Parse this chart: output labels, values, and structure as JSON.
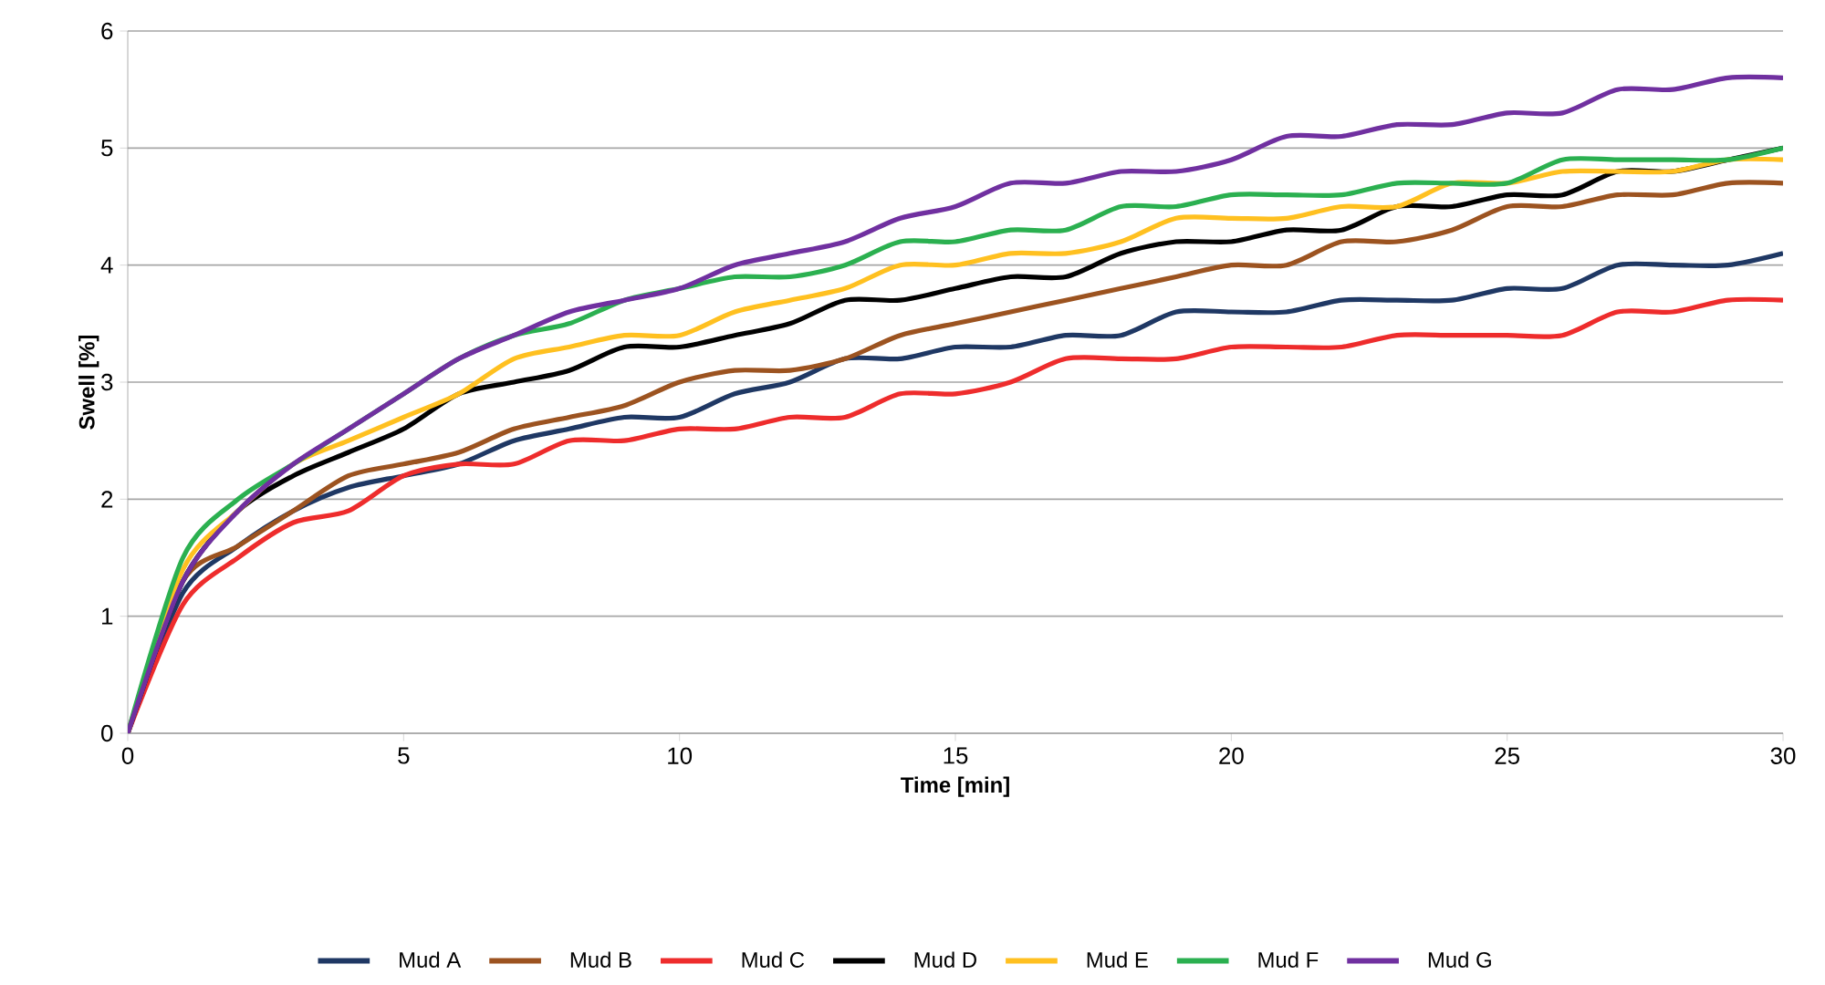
{
  "chart_data": {
    "type": "line",
    "xlabel": "Time [min]",
    "ylabel": "Swell [%]",
    "x": [
      0,
      1,
      2,
      3,
      4,
      5,
      6,
      7,
      8,
      9,
      10,
      11,
      12,
      13,
      14,
      15,
      16,
      17,
      18,
      19,
      20,
      21,
      22,
      23,
      24,
      25,
      26,
      27,
      28,
      29,
      30
    ],
    "series": [
      {
        "name": "Mud A",
        "color": "#1f3864",
        "values": [
          0,
          1.2,
          1.6,
          1.9,
          2.1,
          2.2,
          2.3,
          2.5,
          2.6,
          2.7,
          2.7,
          2.9,
          3.0,
          3.2,
          3.2,
          3.3,
          3.3,
          3.4,
          3.4,
          3.6,
          3.6,
          3.6,
          3.7,
          3.7,
          3.7,
          3.8,
          3.8,
          4.0,
          4.0,
          4.0,
          4.1
        ]
      },
      {
        "name": "Mud B",
        "color": "#9c5320",
        "values": [
          0,
          1.3,
          1.6,
          1.9,
          2.2,
          2.3,
          2.4,
          2.6,
          2.7,
          2.8,
          3.0,
          3.1,
          3.1,
          3.2,
          3.4,
          3.5,
          3.6,
          3.7,
          3.8,
          3.9,
          4.0,
          4.0,
          4.2,
          4.2,
          4.3,
          4.5,
          4.5,
          4.6,
          4.6,
          4.7,
          4.7
        ]
      },
      {
        "name": "Mud C",
        "color": "#ee2c2c",
        "values": [
          0,
          1.1,
          1.5,
          1.8,
          1.9,
          2.2,
          2.3,
          2.3,
          2.5,
          2.5,
          2.6,
          2.6,
          2.7,
          2.7,
          2.9,
          2.9,
          3.0,
          3.2,
          3.2,
          3.2,
          3.3,
          3.3,
          3.3,
          3.4,
          3.4,
          3.4,
          3.4,
          3.6,
          3.6,
          3.7,
          3.7
        ]
      },
      {
        "name": "Mud D",
        "color": "#000000",
        "values": [
          0,
          1.3,
          1.9,
          2.2,
          2.4,
          2.6,
          2.9,
          3.0,
          3.1,
          3.3,
          3.3,
          3.4,
          3.5,
          3.7,
          3.7,
          3.8,
          3.9,
          3.9,
          4.1,
          4.2,
          4.2,
          4.3,
          4.3,
          4.5,
          4.5,
          4.6,
          4.6,
          4.8,
          4.8,
          4.9,
          5.0
        ]
      },
      {
        "name": "Mud E",
        "color": "#ffc020",
        "values": [
          0,
          1.4,
          1.9,
          2.3,
          2.5,
          2.7,
          2.9,
          3.2,
          3.3,
          3.4,
          3.4,
          3.6,
          3.7,
          3.8,
          4.0,
          4.0,
          4.1,
          4.1,
          4.2,
          4.4,
          4.4,
          4.4,
          4.5,
          4.5,
          4.7,
          4.7,
          4.8,
          4.8,
          4.8,
          4.9,
          4.9
        ]
      },
      {
        "name": "Mud F",
        "color": "#2bb050",
        "values": [
          0,
          1.5,
          2.0,
          2.3,
          2.6,
          2.9,
          3.2,
          3.4,
          3.5,
          3.7,
          3.8,
          3.9,
          3.9,
          4.0,
          4.2,
          4.2,
          4.3,
          4.3,
          4.5,
          4.5,
          4.6,
          4.6,
          4.6,
          4.7,
          4.7,
          4.7,
          4.9,
          4.9,
          4.9,
          4.9,
          5.0
        ]
      },
      {
        "name": "Mud G",
        "color": "#7030a0",
        "values": [
          0,
          1.3,
          1.9,
          2.3,
          2.6,
          2.9,
          3.2,
          3.4,
          3.6,
          3.7,
          3.8,
          4.0,
          4.1,
          4.2,
          4.4,
          4.5,
          4.7,
          4.7,
          4.8,
          4.8,
          4.9,
          5.1,
          5.1,
          5.2,
          5.2,
          5.3,
          5.3,
          5.5,
          5.5,
          5.6,
          5.6
        ]
      }
    ],
    "xlim": [
      0,
      30
    ],
    "ylim": [
      0,
      6
    ],
    "xticks": [
      0,
      5,
      10,
      15,
      20,
      25,
      30
    ],
    "yticks": [
      0,
      1,
      2,
      3,
      4,
      5,
      6
    ],
    "grid": "y",
    "legend": "bottom",
    "marker": "none",
    "line_style": "solid"
  }
}
